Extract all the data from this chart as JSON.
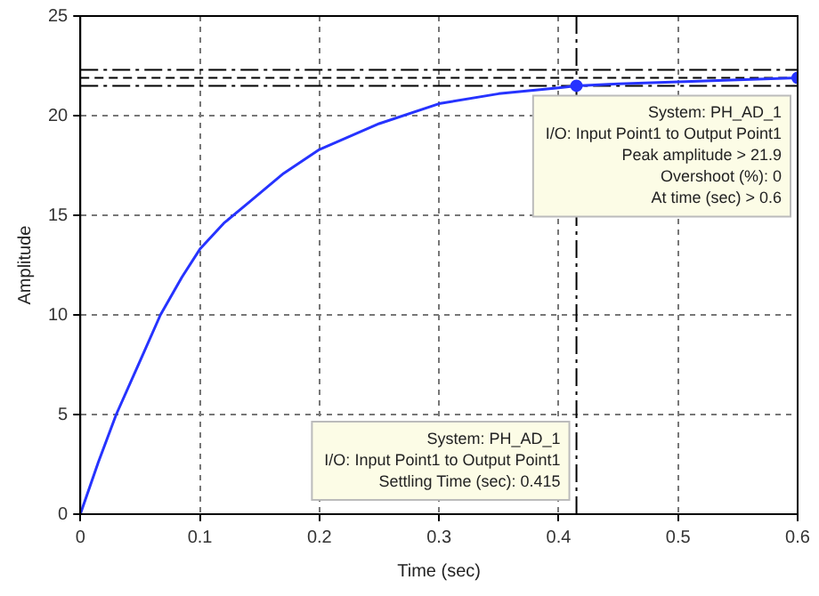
{
  "chart_data": {
    "type": "line",
    "xlabel": "Time (sec)",
    "ylabel": "Amplitude",
    "xlim": [
      0,
      0.6
    ],
    "xticks": [
      0,
      0.1,
      0.2,
      0.3,
      0.4,
      0.5,
      0.6
    ],
    "ylim": [
      0,
      25
    ],
    "yticks": [
      0,
      5,
      10,
      15,
      20,
      25
    ],
    "grid": true,
    "legend": false,
    "series": [
      {
        "color": "#2633ff",
        "marker": "none",
        "x": [
          0,
          0.015,
          0.03,
          0.05,
          0.067,
          0.085,
          0.1,
          0.12,
          0.14,
          0.17,
          0.2,
          0.25,
          0.3,
          0.35,
          0.4,
          0.415,
          0.45,
          0.5,
          0.55,
          0.6
        ],
        "values": [
          0,
          2.6,
          5,
          7.7,
          10,
          11.9,
          13.3,
          14.6,
          15.6,
          17.1,
          18.3,
          19.6,
          20.6,
          21.1,
          21.4,
          21.5,
          21.6,
          21.7,
          21.8,
          21.9
        ]
      },
      {
        "type": "scatter",
        "color": "#2633ff",
        "marker": "circle",
        "x": [
          0.415
        ],
        "values": [
          21.5
        ]
      },
      {
        "type": "scatter",
        "color": "#2633ff",
        "marker": "circle",
        "x": [
          0.6
        ],
        "values": [
          21.9
        ]
      }
    ],
    "ref_lines": [
      {
        "axis": "y",
        "value": 22.3,
        "color": "#000000",
        "line_style": "dashdot"
      },
      {
        "axis": "y",
        "value": 21.9,
        "color": "#000000",
        "line_style": "dashed"
      },
      {
        "axis": "y",
        "value": 21.5,
        "color": "#000000",
        "line_style": "dashdot"
      },
      {
        "axis": "x",
        "value": 0.415,
        "color": "#000000",
        "line_style": "dashdot"
      }
    ],
    "annotations": [
      {
        "text": "System: PH_AD_1\nI/O: Input Point1 to Output Point1\nPeak amplitude > 21.9\nOvershoot (%): 0\nAt time (sec) > 0.6",
        "x": 0.6,
        "y": 21.9
      },
      {
        "text": "System: PH_AD_1\nI/O: Input Point1 to Output Point1\nSettling Time (sec): 0.415",
        "x": 0.415,
        "y": 0
      }
    ]
  }
}
